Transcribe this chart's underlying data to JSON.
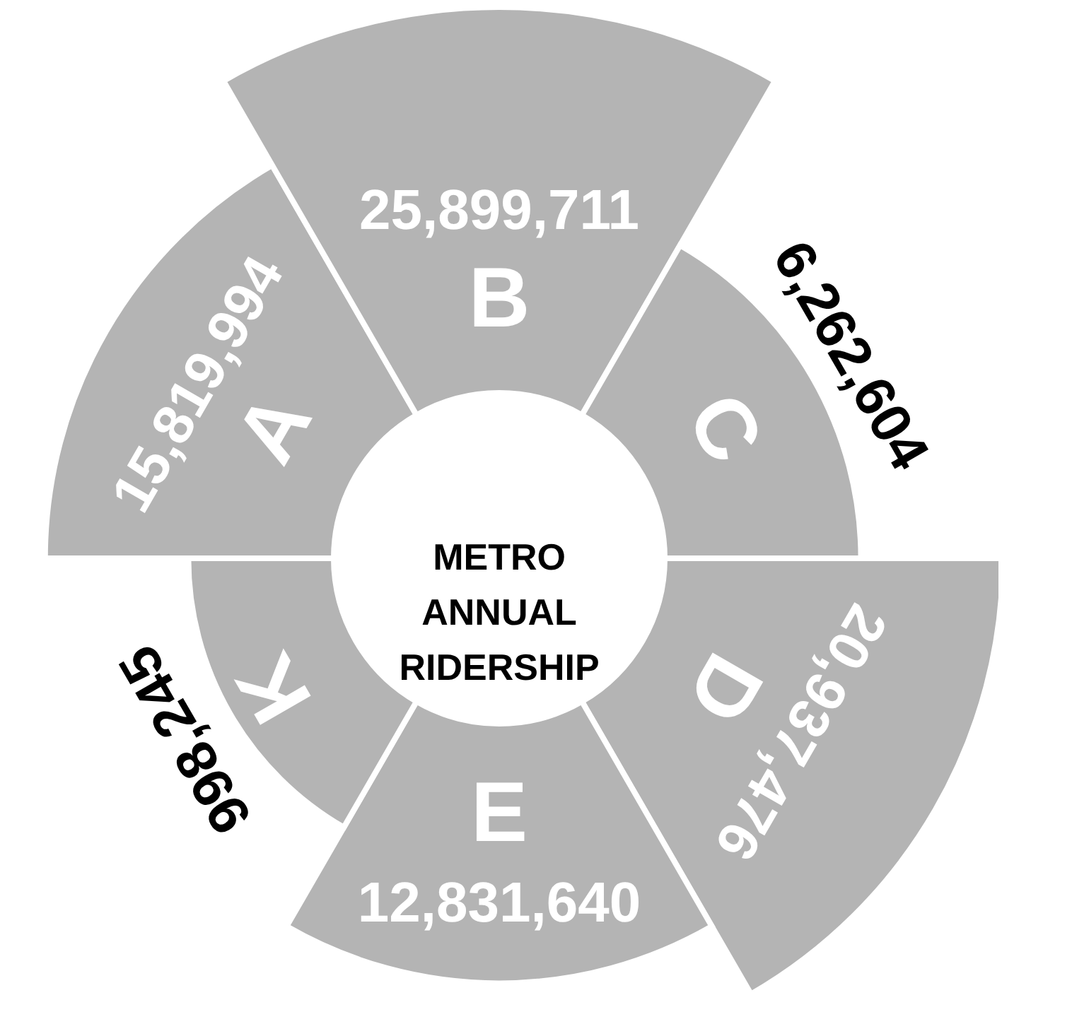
{
  "chart_data": {
    "type": "other",
    "title": "METRO ANNUAL RIDERSHIP",
    "categories": [
      "A",
      "B",
      "C",
      "D",
      "E",
      "K"
    ],
    "values": [
      15819994,
      25899711,
      6262604,
      20937476,
      12831640,
      998245
    ],
    "value_labels": [
      "15,819,994",
      "25,899,711",
      "6,262,604",
      "20,937,476",
      "12,831,640",
      "998,245"
    ],
    "color": "#b4b4b4"
  }
}
